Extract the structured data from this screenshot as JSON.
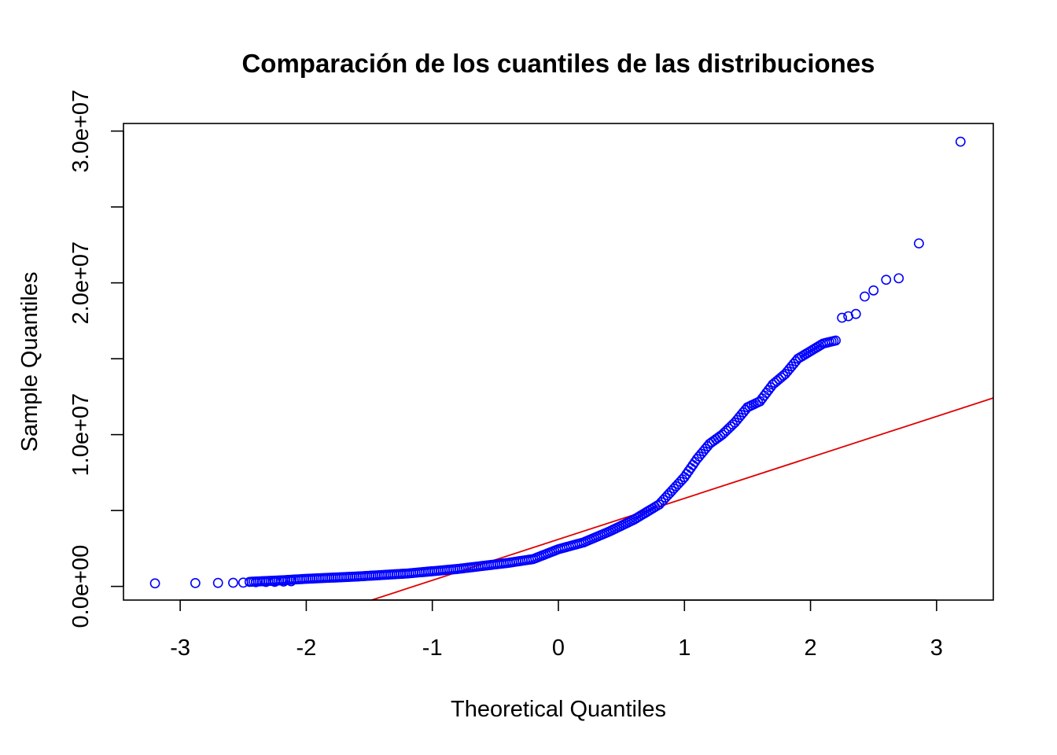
{
  "chart_data": {
    "type": "scatter",
    "title": "Comparación de los cuantiles de las distribuciones",
    "xlabel": "Theoretical Quantiles",
    "ylabel": "Sample Quantiles",
    "xlim": [
      -3.45,
      3.45
    ],
    "ylim": [
      -900000,
      30500000
    ],
    "x_ticks": [
      {
        "value": -3,
        "label": "-3"
      },
      {
        "value": -2,
        "label": "-2"
      },
      {
        "value": -1,
        "label": "-1"
      },
      {
        "value": 0,
        "label": "0"
      },
      {
        "value": 1,
        "label": "1"
      },
      {
        "value": 2,
        "label": "2"
      },
      {
        "value": 3,
        "label": "3"
      }
    ],
    "y_ticks": [
      {
        "value": 0,
        "label": "0.0e+00"
      },
      {
        "value": 5000000,
        "label": ""
      },
      {
        "value": 10000000,
        "label": "1.0e+07"
      },
      {
        "value": 15000000,
        "label": ""
      },
      {
        "value": 20000000,
        "label": "2.0e+07"
      },
      {
        "value": 25000000,
        "label": ""
      },
      {
        "value": 30000000,
        "label": "3.0e+07"
      }
    ],
    "point_color": "#0000ff",
    "line_color": "#e00000",
    "reference_line": {
      "intercept": 3100000,
      "slope": 2700000
    },
    "curve": [
      [
        -2.45,
        300000
      ],
      [
        -2.2,
        400000
      ],
      [
        -2.0,
        500000
      ],
      [
        -1.6,
        650000
      ],
      [
        -1.2,
        850000
      ],
      [
        -0.8,
        1150000
      ],
      [
        -0.4,
        1550000
      ],
      [
        -0.2,
        1800000
      ],
      [
        0.0,
        2450000
      ],
      [
        0.2,
        2900000
      ],
      [
        0.4,
        3600000
      ],
      [
        0.6,
        4400000
      ],
      [
        0.8,
        5400000
      ],
      [
        0.9,
        6300000
      ],
      [
        1.0,
        7200000
      ],
      [
        1.1,
        8400000
      ],
      [
        1.2,
        9400000
      ],
      [
        1.3,
        10000000
      ],
      [
        1.4,
        10800000
      ],
      [
        1.5,
        11800000
      ],
      [
        1.6,
        12200000
      ],
      [
        1.7,
        13300000
      ],
      [
        1.8,
        14000000
      ],
      [
        1.9,
        15000000
      ],
      [
        2.0,
        15500000
      ],
      [
        2.1,
        16000000
      ],
      [
        2.2,
        16200000
      ]
    ],
    "outliers": [
      [
        -3.2,
        200000
      ],
      [
        -2.88,
        220000
      ],
      [
        -2.7,
        230000
      ],
      [
        -2.58,
        240000
      ],
      [
        -2.5,
        250000
      ],
      [
        -2.4,
        280000
      ],
      [
        -2.32,
        290000
      ],
      [
        -2.25,
        300000
      ],
      [
        -2.18,
        320000
      ],
      [
        -2.12,
        340000
      ],
      [
        2.25,
        17700000
      ],
      [
        2.3,
        17800000
      ],
      [
        2.36,
        17950000
      ],
      [
        2.43,
        19100000
      ],
      [
        2.5,
        19500000
      ],
      [
        2.6,
        20200000
      ],
      [
        2.7,
        20300000
      ],
      [
        2.86,
        22600000
      ],
      [
        3.19,
        29300000
      ]
    ]
  }
}
